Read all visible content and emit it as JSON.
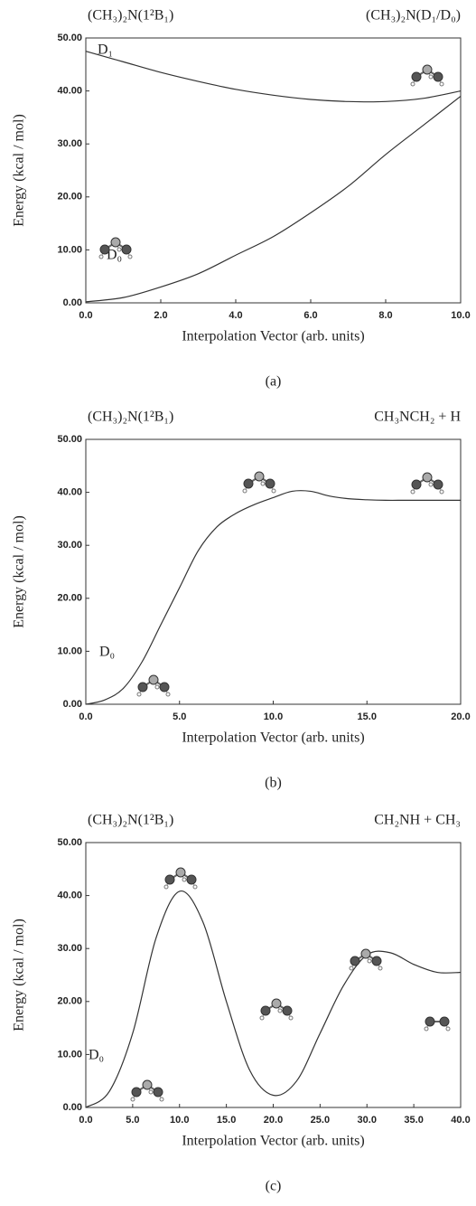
{
  "chart_data": [
    {
      "type": "line",
      "caption": "(a)",
      "annotations": [
        "(CH₃)₂N(1²B₁)",
        "(CH₃)₂N(D₁/D₀)"
      ],
      "xlabel": "Interpolation Vector (arb. units)",
      "ylabel": "Energy (kcal / mol)",
      "x": [
        0,
        1,
        2,
        3,
        4,
        5,
        6,
        7,
        8,
        9,
        10
      ],
      "series": [
        {
          "name": "D₁",
          "color": "#333333",
          "values": [
            47.5,
            45.5,
            43.5,
            41.8,
            40.3,
            39.2,
            38.4,
            38.0,
            38.0,
            38.6,
            40.0
          ]
        },
        {
          "name": "D₀",
          "color": "#333333",
          "values": [
            0.2,
            1.0,
            3.0,
            5.5,
            9.0,
            12.5,
            17.0,
            22.0,
            28.0,
            33.5,
            39.0
          ]
        }
      ],
      "xlim": [
        0,
        10
      ],
      "xticks": [
        {
          "value": 0,
          "label": "0.0"
        },
        {
          "value": 2,
          "label": "2.0"
        },
        {
          "value": 4,
          "label": "4.0"
        },
        {
          "value": 6,
          "label": "6.0"
        },
        {
          "value": 8,
          "label": "8.0"
        },
        {
          "value": 10,
          "label": "10.0"
        }
      ],
      "ylim": [
        0,
        50
      ],
      "yticks": [
        {
          "value": 0,
          "label": "0.00"
        },
        {
          "value": 10,
          "label": "10.00"
        },
        {
          "value": 20,
          "label": "20.00"
        },
        {
          "value": 30,
          "label": "30.00"
        },
        {
          "value": 40,
          "label": "40.00"
        },
        {
          "value": 50,
          "label": "50.00"
        }
      ]
    },
    {
      "type": "line",
      "caption": "(b)",
      "annotations": [
        "(CH₃)₂N(1²B₁)",
        "CH₃NCH₂ + H"
      ],
      "xlabel": "Interpolation Vector (arb. units)",
      "ylabel": "Energy (kcal / mol)",
      "x": [
        0,
        1,
        2,
        3,
        4,
        5,
        6,
        7,
        8,
        9,
        10,
        11,
        12,
        13,
        14,
        15,
        16,
        17,
        18,
        19,
        20
      ],
      "series": [
        {
          "name": "D₀",
          "color": "#333333",
          "values": [
            0,
            0.8,
            3,
            8,
            15,
            22,
            29,
            33.5,
            36,
            37.7,
            39,
            40.2,
            40.2,
            39.3,
            38.8,
            38.6,
            38.5,
            38.5,
            38.5,
            38.5,
            38.5
          ]
        }
      ],
      "xlim": [
        0,
        20
      ],
      "xticks": [
        {
          "value": 0,
          "label": "0.0"
        },
        {
          "value": 5,
          "label": "5.0"
        },
        {
          "value": 10,
          "label": "10.0"
        },
        {
          "value": 15,
          "label": "15.0"
        },
        {
          "value": 20,
          "label": "20.0"
        }
      ],
      "ylim": [
        0,
        50
      ],
      "yticks": [
        {
          "value": 0,
          "label": "0.00"
        },
        {
          "value": 10,
          "label": "10.00"
        },
        {
          "value": 20,
          "label": "20.00"
        },
        {
          "value": 30,
          "label": "30.00"
        },
        {
          "value": 40,
          "label": "40.00"
        },
        {
          "value": 50,
          "label": "50.00"
        }
      ]
    },
    {
      "type": "line",
      "caption": "(c)",
      "annotations": [
        "(CH₃)₂N(1²B₁)",
        "CH₂NH + CH₃"
      ],
      "xlabel": "Interpolation Vector (arb. units)",
      "ylabel": "Energy (kcal / mol)",
      "x": [
        0,
        2.5,
        5,
        7.5,
        10,
        12.5,
        15,
        17.5,
        20,
        22.5,
        25,
        27.5,
        30,
        32.5,
        35,
        37.5,
        40
      ],
      "series": [
        {
          "name": "D₀",
          "color": "#333333",
          "values": [
            0,
            3,
            14,
            32,
            40.8,
            35,
            20,
            7,
            2.3,
            5,
            14,
            23,
            28.8,
            29.2,
            27,
            25.5,
            25.5
          ]
        }
      ],
      "xlim": [
        0,
        40
      ],
      "xticks": [
        {
          "value": 0,
          "label": "0.0"
        },
        {
          "value": 5,
          "label": "5.0"
        },
        {
          "value": 10,
          "label": "10.0"
        },
        {
          "value": 15,
          "label": "15.0"
        },
        {
          "value": 20,
          "label": "20.0"
        },
        {
          "value": 25,
          "label": "25.0"
        },
        {
          "value": 30,
          "label": "30.0"
        },
        {
          "value": 35,
          "label": "35.0"
        },
        {
          "value": 40,
          "label": "40.0"
        }
      ],
      "ylim": [
        0,
        50
      ],
      "yticks": [
        {
          "value": 0,
          "label": "0.00"
        },
        {
          "value": 10,
          "label": "10.00"
        },
        {
          "value": 20,
          "label": "20.00"
        },
        {
          "value": 30,
          "label": "30.00"
        },
        {
          "value": 40,
          "label": "40.00"
        },
        {
          "value": 50,
          "label": "50.00"
        }
      ]
    }
  ]
}
